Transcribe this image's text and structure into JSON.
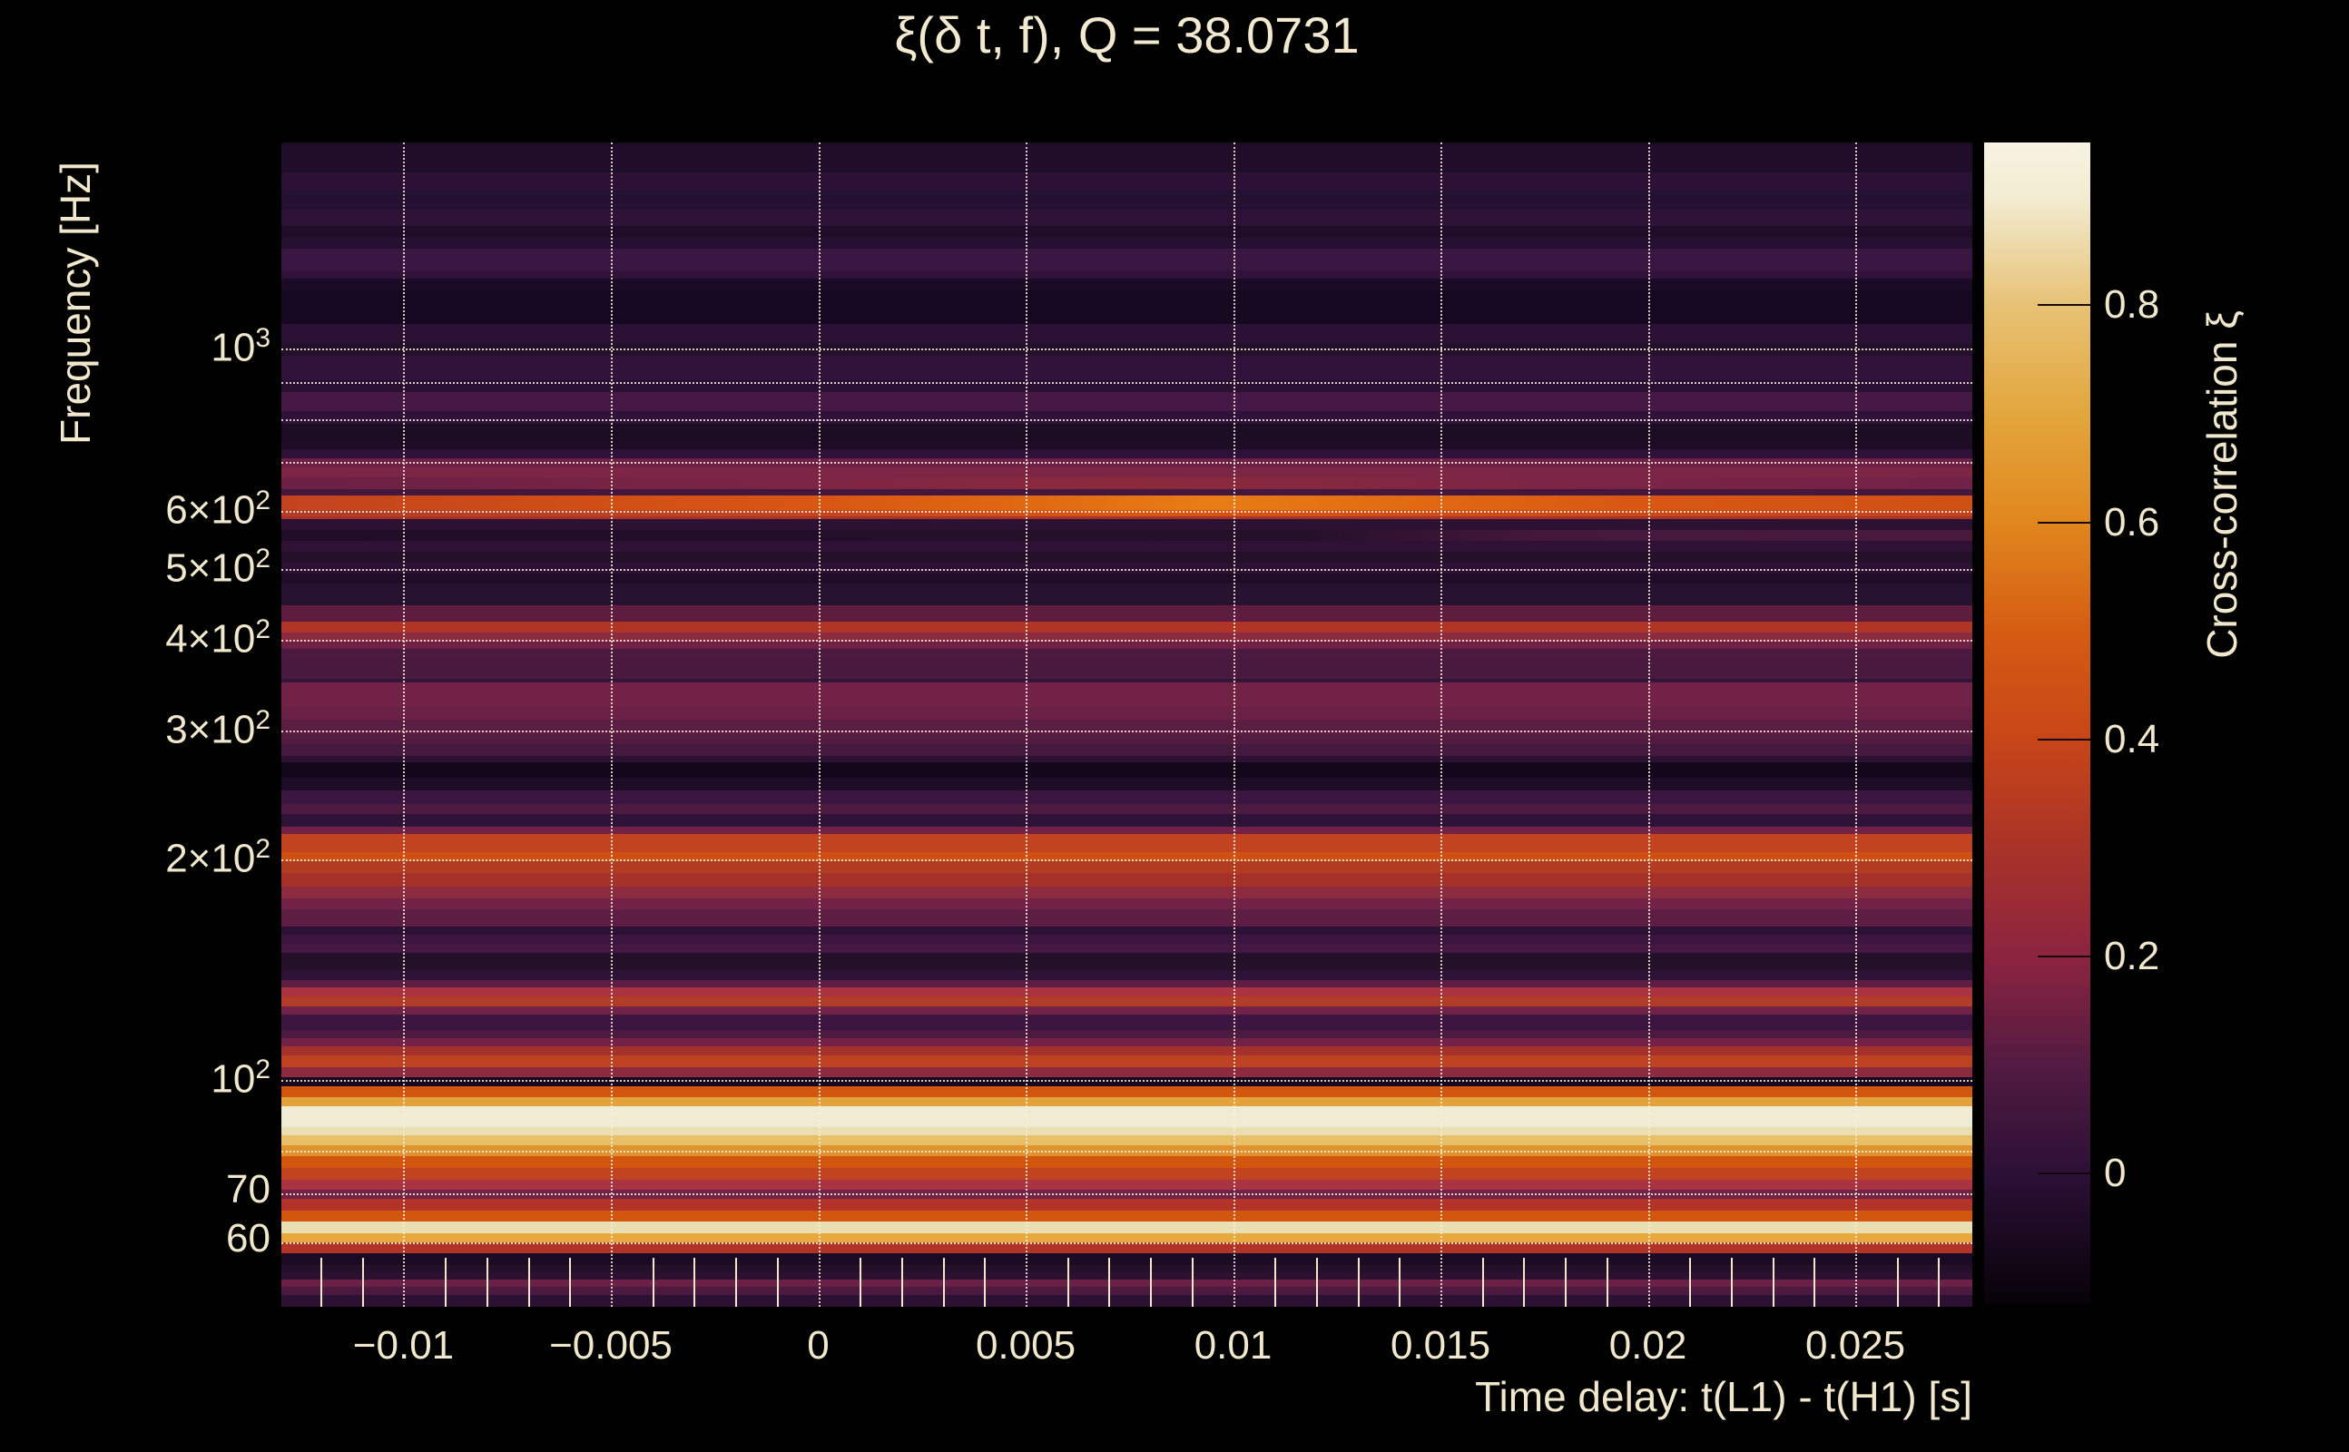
{
  "title": {
    "text": "ξ(δ t, f), Q = 38.0731",
    "q_value": "38.0731"
  },
  "colors": {
    "background": "#000000",
    "text": "#f0e7cd",
    "grid": "#f8f0da",
    "plot_dark": "#140a1c"
  },
  "axes": {
    "x": {
      "label": "Time delay: t(L1) - t(H1) [s]",
      "range_s": [
        -0.01295,
        0.02785
      ],
      "ticks": [
        {
          "t": -0.01,
          "label": "−0.01"
        },
        {
          "t": -0.005,
          "label": "−0.005"
        },
        {
          "t": 0,
          "label": "0"
        },
        {
          "t": 0.005,
          "label": "0.005"
        },
        {
          "t": 0.01,
          "label": "0.01"
        },
        {
          "t": 0.015,
          "label": "0.015"
        },
        {
          "t": 0.02,
          "label": "0.02"
        },
        {
          "t": 0.025,
          "label": "0.025"
        }
      ],
      "minor_tick_step_s": 0.001
    },
    "y": {
      "label": "Frequency [Hz]",
      "scale": "log",
      "range_hz": [
        49,
        1912
      ],
      "ticks": [
        {
          "f": 1000,
          "mantissa": "10",
          "exp": "3"
        },
        {
          "f": 600,
          "mantissa": "6×10",
          "exp": "2"
        },
        {
          "f": 500,
          "mantissa": "5×10",
          "exp": "2"
        },
        {
          "f": 400,
          "mantissa": "4×10",
          "exp": "2"
        },
        {
          "f": 300,
          "mantissa": "3×10",
          "exp": "2"
        },
        {
          "f": 200,
          "mantissa": "2×10",
          "exp": "2"
        },
        {
          "f": 100,
          "mantissa": "10",
          "exp": "2"
        },
        {
          "f": 70,
          "mantissa": "70",
          "exp": ""
        },
        {
          "f": 60,
          "mantissa": "60",
          "exp": ""
        }
      ],
      "gridline_freqs_hz": [
        1000,
        900,
        800,
        700,
        600,
        500,
        400,
        300,
        200,
        100,
        90,
        80,
        70,
        60
      ]
    }
  },
  "colorbar": {
    "label": "Cross-correlation ξ",
    "vmin": -0.12,
    "vmax": 0.95,
    "ticks": [
      {
        "v": 0.8,
        "label": "0.8"
      },
      {
        "v": 0.6,
        "label": "0.6"
      },
      {
        "v": 0.4,
        "label": "0.4"
      },
      {
        "v": 0.2,
        "label": "0.2"
      },
      {
        "v": 0,
        "label": "0"
      }
    ],
    "gradient_top_to_bottom": [
      [
        0.0,
        "#f8f3e2"
      ],
      [
        0.047,
        "#f2ecd2"
      ],
      [
        0.14,
        "#e7c275"
      ],
      [
        0.234,
        "#e2a63c"
      ],
      [
        0.327,
        "#e0871d"
      ],
      [
        0.421,
        "#d55c12"
      ],
      [
        0.514,
        "#c84518"
      ],
      [
        0.607,
        "#a93327"
      ],
      [
        0.701,
        "#8c2440"
      ],
      [
        0.794,
        "#521b41"
      ],
      [
        0.888,
        "#2c1036"
      ],
      [
        1.0,
        "#070208"
      ]
    ]
  },
  "chart_data": {
    "type": "heatmap",
    "title": "ξ(δ t, f), Q = 38.0731",
    "xlabel": "Time delay: t(L1) - t(H1) [s]",
    "ylabel": "Frequency [Hz]",
    "x_range_s": [
      -0.01295,
      0.02785
    ],
    "y_range_hz": [
      49,
      1912
    ],
    "value_name": "Cross-correlation ξ",
    "value_range": [
      -0.12,
      0.95
    ],
    "note": "Correlation is nearly constant vs time delay in each frequency band; rows listed high to low frequency",
    "rows": [
      {
        "f": [
          1912,
          1895
        ],
        "xi": 0.02,
        "c": "#1a0b22"
      },
      {
        "f": [
          1895,
          1740
        ],
        "xi": 0.03,
        "c": "#1f0d2a"
      },
      {
        "f": [
          1740,
          1642
        ],
        "xi": 0.07,
        "c": "#2a1135"
      },
      {
        "f": [
          1642,
          1549
        ],
        "xi": 0.05,
        "c": "#241030"
      },
      {
        "f": [
          1549,
          1471
        ],
        "xi": 0.08,
        "c": "#2d1237"
      },
      {
        "f": [
          1471,
          1417
        ],
        "xi": 0.03,
        "c": "#1e0c28"
      },
      {
        "f": [
          1417,
          1369
        ],
        "xi": 0.05,
        "c": "#251031"
      },
      {
        "f": [
          1369,
          1280
        ],
        "xi": 0.12,
        "c": "#3a1642"
      },
      {
        "f": [
          1280,
          1247
        ],
        "xi": 0.1,
        "c": "#30123a"
      },
      {
        "f": [
          1247,
          1202
        ],
        "xi": 0.02,
        "c": "#1c0b26"
      },
      {
        "f": [
          1202,
          1081
        ],
        "xi": 0.0,
        "c": "#160820"
      },
      {
        "f": [
          1081,
          1017
        ],
        "xi": 0.08,
        "c": "#2c1136"
      },
      {
        "f": [
          1017,
          977
        ],
        "xi": 0.05,
        "c": "#241029"
      },
      {
        "f": [
          977,
          906
        ],
        "xi": 0.1,
        "c": "#30123a"
      },
      {
        "f": [
          906,
          873
        ],
        "xi": 0.07,
        "c": "#2a1133"
      },
      {
        "f": [
          873,
          822
        ],
        "xi": 0.15,
        "c": "#451845"
      },
      {
        "f": [
          822,
          790
        ],
        "xi": 0.1,
        "c": "#30113a"
      },
      {
        "f": [
          790,
          729
        ],
        "xi": 0.02,
        "c": "#1c0c24"
      },
      {
        "f": [
          729,
          708
        ],
        "xi": 0.09,
        "c": "#2e1138"
      },
      {
        "f": [
          708,
          687
        ],
        "xi": 0.26,
        "c": "#6d2045"
      },
      {
        "f": [
          687,
          666
        ],
        "xi": 0.3,
        "c": "#7c2545"
      },
      {
        "f": [
          666,
          642
        ],
        "xi": 0.33,
        "c": "#8c2a3c",
        "g": [
          [
            0,
            "#6b2044"
          ],
          [
            0.3,
            "#7c2545"
          ],
          [
            0.5,
            "#8c2a3c"
          ],
          [
            0.75,
            "#7c2545"
          ],
          [
            1,
            "#722147"
          ]
        ]
      },
      {
        "f": [
          642,
          629
        ],
        "xi": 0.15,
        "c": "#45173d"
      },
      {
        "f": [
          629,
          602
        ],
        "xi": 0.6,
        "c": "#d85713",
        "g": [
          [
            0,
            "#c2431f"
          ],
          [
            0.15,
            "#ce4c16"
          ],
          [
            0.32,
            "#d85713"
          ],
          [
            0.45,
            "#e06a12"
          ],
          [
            0.55,
            "#e87d15"
          ],
          [
            0.68,
            "#e06812"
          ],
          [
            0.8,
            "#d85713"
          ],
          [
            1,
            "#cf5014"
          ]
        ]
      },
      {
        "f": [
          602,
          590
        ],
        "xi": 0.52,
        "c": "#cc4e18",
        "g": [
          [
            0,
            "#b23c27"
          ],
          [
            0.3,
            "#c2431f"
          ],
          [
            0.5,
            "#d85713"
          ],
          [
            0.7,
            "#ce4c16"
          ],
          [
            1,
            "#c2431f"
          ]
        ]
      },
      {
        "f": [
          590,
          585
        ],
        "xi": 0.41,
        "c": "#a83225"
      },
      {
        "f": [
          585,
          565
        ],
        "xi": 0.08,
        "c": "#2d1133"
      },
      {
        "f": [
          565,
          546
        ],
        "xi": 0.06,
        "c": "#241028",
        "g": [
          [
            0,
            "#1f0d28"
          ],
          [
            0.6,
            "#241028"
          ],
          [
            0.75,
            "#45173d"
          ],
          [
            1,
            "#4a1a3e"
          ]
        ]
      },
      {
        "f": [
          546,
          528
        ],
        "xi": 0.09,
        "c": "#2e1134"
      },
      {
        "f": [
          528,
          509
        ],
        "xi": 0.05,
        "c": "#241028"
      },
      {
        "f": [
          509,
          492
        ],
        "xi": 0.08,
        "c": "#2c1134"
      },
      {
        "f": [
          492,
          477
        ],
        "xi": 0.03,
        "c": "#1f0d28"
      },
      {
        "f": [
          477,
          445
        ],
        "xi": 0.06,
        "c": "#271130"
      },
      {
        "f": [
          445,
          423
        ],
        "xi": 0.22,
        "c": "#5e1d3e"
      },
      {
        "f": [
          423,
          409
        ],
        "xi": 0.43,
        "c": "#b03527"
      },
      {
        "f": [
          409,
          397
        ],
        "xi": 0.33,
        "c": "#8c2a42"
      },
      {
        "f": [
          397,
          389
        ],
        "xi": 0.26,
        "c": "#6e2145"
      },
      {
        "f": [
          389,
          378
        ],
        "xi": 0.17,
        "c": "#4c1a40"
      },
      {
        "f": [
          378,
          354
        ],
        "xi": 0.16,
        "c": "#4a193f"
      },
      {
        "f": [
          354,
          349
        ],
        "xi": 0.11,
        "c": "#35143a"
      },
      {
        "f": [
          349,
          324
        ],
        "xi": 0.27,
        "c": "#722147"
      },
      {
        "f": [
          324,
          311
        ],
        "xi": 0.25,
        "c": "#6b2045"
      },
      {
        "f": [
          311,
          296
        ],
        "xi": 0.21,
        "c": "#5c1d42"
      },
      {
        "f": [
          296,
          288
        ],
        "xi": 0.19,
        "c": "#531b40"
      },
      {
        "f": [
          288,
          277
        ],
        "xi": 0.15,
        "c": "#451840"
      },
      {
        "f": [
          277,
          272
        ],
        "xi": 0.07,
        "c": "#2b1232"
      },
      {
        "f": [
          272,
          259
        ],
        "xi": -0.02,
        "c": "#13071b"
      },
      {
        "f": [
          259,
          249
        ],
        "xi": 0.02,
        "c": "#1d0c26"
      },
      {
        "f": [
          249,
          238
        ],
        "xi": 0.12,
        "c": "#3a1640"
      },
      {
        "f": [
          238,
          231
        ],
        "xi": 0.17,
        "c": "#4c1a40"
      },
      {
        "f": [
          231,
          222
        ],
        "xi": 0.09,
        "c": "#2e1237"
      },
      {
        "f": [
          222,
          217
        ],
        "xi": 0.27,
        "c": "#722147"
      },
      {
        "f": [
          217,
          205
        ],
        "xi": 0.49,
        "c": "#c2431f"
      },
      {
        "f": [
          205,
          199
        ],
        "xi": 0.54,
        "c": "#cf5012"
      },
      {
        "f": [
          199,
          192
        ],
        "xi": 0.45,
        "c": "#b23c22"
      },
      {
        "f": [
          192,
          184
        ],
        "xi": 0.41,
        "c": "#a53128"
      },
      {
        "f": [
          184,
          177
        ],
        "xi": 0.33,
        "c": "#8c2a3f"
      },
      {
        "f": [
          177,
          171
        ],
        "xi": 0.27,
        "c": "#722147"
      },
      {
        "f": [
          171,
          162
        ],
        "xi": 0.22,
        "c": "#5e1d42"
      },
      {
        "f": [
          162,
          158
        ],
        "xi": 0.08,
        "c": "#2d1137"
      },
      {
        "f": [
          158,
          153
        ],
        "xi": 0.13,
        "c": "#3c1640"
      },
      {
        "f": [
          153,
          149
        ],
        "xi": 0.15,
        "c": "#451843"
      },
      {
        "f": [
          149,
          141
        ],
        "xi": 0.05,
        "c": "#241028"
      },
      {
        "f": [
          141,
          137
        ],
        "xi": 0.09,
        "c": "#2f1238"
      },
      {
        "f": [
          137,
          134
        ],
        "xi": 0.22,
        "c": "#5e1d42"
      },
      {
        "f": [
          134,
          130
        ],
        "xi": 0.42,
        "c": "#a93340"
      },
      {
        "f": [
          130,
          126
        ],
        "xi": 0.45,
        "c": "#b23c27"
      },
      {
        "f": [
          126,
          123
        ],
        "xi": 0.27,
        "c": "#722147"
      },
      {
        "f": [
          123,
          117
        ],
        "xi": 0.13,
        "c": "#3c1540"
      },
      {
        "f": [
          117,
          114
        ],
        "xi": 0.17,
        "c": "#4c1a40"
      },
      {
        "f": [
          114,
          111
        ],
        "xi": 0.27,
        "c": "#722147"
      },
      {
        "f": [
          111,
          108
        ],
        "xi": 0.4,
        "c": "#a4312b"
      },
      {
        "f": [
          108,
          104
        ],
        "xi": 0.47,
        "c": "#bc4221"
      },
      {
        "f": [
          104,
          101
        ],
        "xi": 0.33,
        "c": "#8c2a3f"
      },
      {
        "f": [
          101,
          98
        ],
        "xi": 0.0,
        "c": "#16081e"
      },
      {
        "f": [
          98,
          94.6
        ],
        "xi": 0.55,
        "c": "#d3560f"
      },
      {
        "f": [
          94.6,
          92
        ],
        "xi": 0.71,
        "c": "#e3a23b"
      },
      {
        "f": [
          92,
          86.2
        ],
        "xi": 0.93,
        "c": "#f0ecd4"
      },
      {
        "f": [
          86.2,
          84
        ],
        "xi": 0.88,
        "c": "#eadfb2"
      },
      {
        "f": [
          84,
          81.5
        ],
        "xi": 0.78,
        "c": "#e8c06a"
      },
      {
        "f": [
          81.5,
          78.7
        ],
        "xi": 0.68,
        "c": "#e0922e"
      },
      {
        "f": [
          78.7,
          75.9
        ],
        "xi": 0.55,
        "c": "#d3560f"
      },
      {
        "f": [
          75.9,
          73.1
        ],
        "xi": 0.49,
        "c": "#c2431f"
      },
      {
        "f": [
          73.1,
          70.7
        ],
        "xi": 0.42,
        "c": "#a93340"
      },
      {
        "f": [
          70.7,
          68.7
        ],
        "xi": 0.27,
        "c": "#722147"
      },
      {
        "f": [
          68.7,
          66.2
        ],
        "xi": 0.44,
        "c": "#b23327"
      },
      {
        "f": [
          66.2,
          64
        ],
        "xi": 0.55,
        "c": "#d3560f"
      },
      {
        "f": [
          64,
          61.7
        ],
        "xi": 0.88,
        "c": "#eadfb2"
      },
      {
        "f": [
          61.7,
          59.9
        ],
        "xi": 0.73,
        "c": "#e8a93c"
      },
      {
        "f": [
          59.9,
          58
        ],
        "xi": 0.44,
        "c": "#b23327"
      },
      {
        "f": [
          58,
          55.9
        ],
        "xi": 0.02,
        "c": "#1c0b24"
      },
      {
        "f": [
          55.9,
          54.5
        ],
        "xi": 0.05,
        "c": "#241028"
      },
      {
        "f": [
          54.5,
          53.3
        ],
        "xi": 0.08,
        "c": "#2d1133"
      },
      {
        "f": [
          53.3,
          52.2
        ],
        "xi": 0.26,
        "c": "#6d2045"
      },
      {
        "f": [
          52.2,
          50.8
        ],
        "xi": 0.17,
        "c": "#4c1a40"
      },
      {
        "f": [
          50.8,
          49.0
        ],
        "xi": 0.08,
        "c": "#2d1133"
      }
    ]
  }
}
